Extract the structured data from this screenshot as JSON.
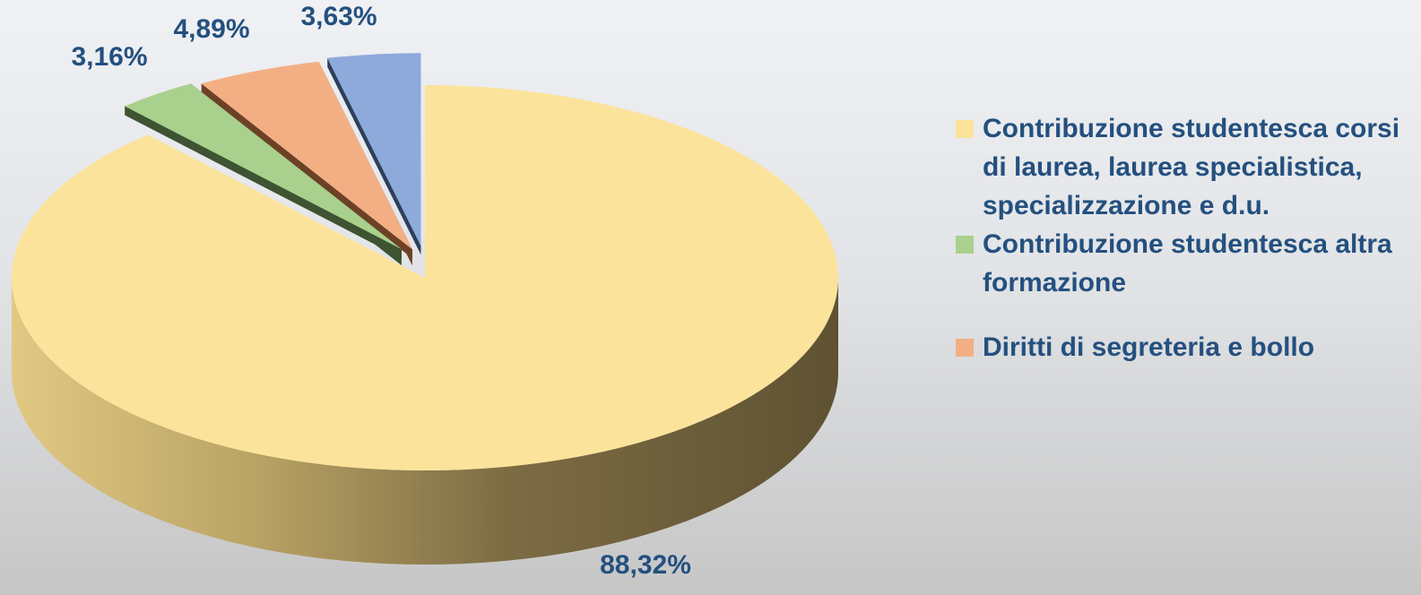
{
  "chart_data": {
    "type": "pie",
    "style": "3d-exploded",
    "slices": [
      {
        "label": "Contribuzione studentesca corsi di laurea, laurea specialistica, specializzazione e d.u.",
        "value": 88.32,
        "display": "88,32%",
        "color": "#fce39b",
        "side_color": "#c8ad64"
      },
      {
        "label": "Contribuzione studentesca altra formazione",
        "value": 3.16,
        "display": "3,16%",
        "color": "#a9d08c",
        "side_color": "#3e5331"
      },
      {
        "label": "Diritti di segreteria e bollo",
        "value": 4.89,
        "display": "4,89%",
        "color": "#f3af83",
        "side_color": "#6d4125"
      },
      {
        "label": "",
        "value": 3.63,
        "display": "3,63%",
        "color": "#8eaadb",
        "side_color": "#2e3f5c"
      }
    ],
    "legend": {
      "position": "right",
      "entries": [
        {
          "label": "Contribuzione studentesca corsi di laurea, laurea specialistica, specializzazione e d.u.",
          "color": "#fce39b"
        },
        {
          "label": "Contribuzione studentesca altra formazione",
          "color": "#a9d08c"
        },
        {
          "label": "Diritti di segreteria e bollo",
          "color": "#f3af83"
        }
      ]
    }
  }
}
